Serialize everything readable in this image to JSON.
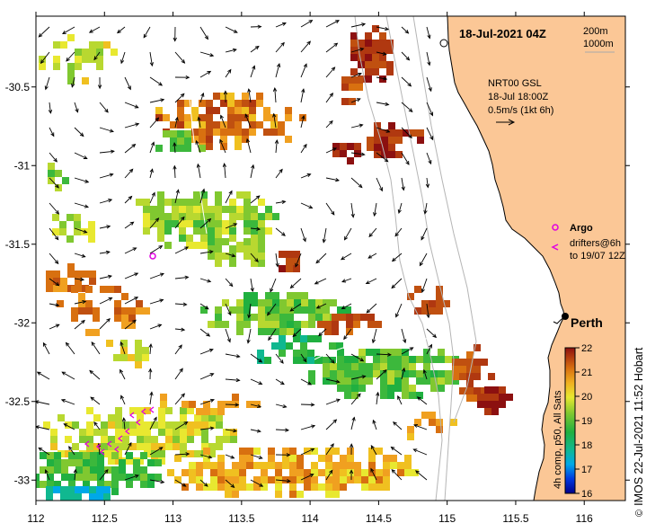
{
  "header": {
    "date_label": "18-Jul-2021 04Z"
  },
  "isobath_legend": {
    "label_200": "200m",
    "label_1000": "1000m"
  },
  "current_legend": {
    "line1": "NRT00 GSL",
    "line2": "18-Jul 18:00Z",
    "line3": "0.5m/s (1kt 6h)"
  },
  "argo_legend": {
    "label": "Argo"
  },
  "drifter_legend": {
    "line1": "drifters@6h",
    "line2": "to 19/07 12Z"
  },
  "city": {
    "name": "Perth",
    "lon": 115.86,
    "lat": -31.95
  },
  "colorbar": {
    "title": "4h comp, p50, All Sats",
    "min": 16,
    "max": 22,
    "ticks": [
      "16",
      "17",
      "18",
      "19",
      "20",
      "21",
      "22"
    ]
  },
  "credit": {
    "text": "IMOS 22-Jul-2021 11:52 Hobart",
    "symbol": "©"
  },
  "axes": {
    "lon_range": [
      112,
      116.3
    ],
    "lat_range": [
      -33.13,
      -30.05
    ],
    "x_ticks": [
      "112",
      "112.5",
      "113",
      "113.5",
      "114",
      "114.5",
      "115",
      "115.5",
      "116"
    ],
    "y_ticks": [
      "-30.5",
      "-31",
      "-31.5",
      "-32",
      "-32.5",
      "-33"
    ]
  },
  "colors": {
    "land": "#fbc796",
    "isobath": "#b5b5b5",
    "argo": "#e000e0",
    "arrow": "#000000"
  }
}
